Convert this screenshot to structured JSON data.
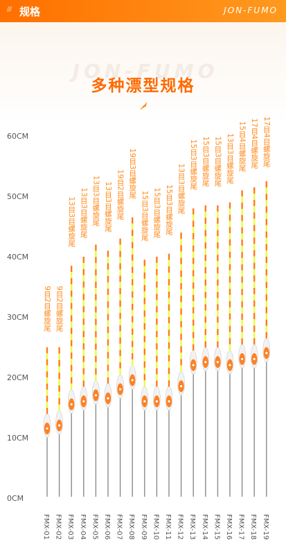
{
  "header": {
    "marks": "///",
    "title": "规格",
    "brand": "JON-FUMO",
    "colors": {
      "accent": "#ff6f00",
      "accent2": "#ff9a1f"
    }
  },
  "watermark": "JON-FUMO",
  "deco_icon": "feather-icon",
  "chart_data": {
    "type": "bar",
    "title": "多种漂型规格",
    "y_unit": "CM",
    "ylim": [
      0,
      60
    ],
    "yticks": [
      "0CM",
      "10CM",
      "20CM",
      "30CM",
      "40CM",
      "50CM",
      "60CM"
    ],
    "grid": false,
    "colors": {
      "tip_yellow": "#e8ff3a",
      "tip_orange": "#ff7a1a",
      "body": "#f2f2f2",
      "body_accent": "#ff6f00",
      "stem": "#8a8a8a",
      "label": "#ff8a1a"
    },
    "floats": [
      {
        "model": "FMX-01",
        "tail": "9目2目螺旋尾",
        "length": 25,
        "body_center": 12
      },
      {
        "model": "FMX-02",
        "tail": "9目2目螺旋尾",
        "length": 25,
        "body_center": 12.5
      },
      {
        "model": "FMX-03",
        "tail": "13目3目螺旋尾",
        "length": 38.5,
        "body_center": 16
      },
      {
        "model": "FMX-04",
        "tail": "13目3目螺旋尾",
        "length": 40,
        "body_center": 16.5
      },
      {
        "model": "FMX-05",
        "tail": "13目3目螺旋尾",
        "length": 42,
        "body_center": 17.5
      },
      {
        "model": "FMX-06",
        "tail": "13目3目螺旋尾",
        "length": 41,
        "body_center": 17
      },
      {
        "model": "FMX-07",
        "tail": "19目2目螺旋尾",
        "length": 43,
        "body_center": 18.5
      },
      {
        "model": "FMX-08",
        "tail": "19目3目螺旋尾",
        "length": 46.5,
        "body_center": 20
      },
      {
        "model": "FMX-09",
        "tail": "15目3目螺旋尾",
        "length": 39.5,
        "body_center": 16.5
      },
      {
        "model": "FMX-10",
        "tail": "15目3目螺旋尾",
        "length": 40,
        "body_center": 16.5
      },
      {
        "model": "FMX-11",
        "tail": "15目3目螺旋尾",
        "length": 40.5,
        "body_center": 16.5
      },
      {
        "model": "FMX-12",
        "tail": "13目3目螺旋尾",
        "length": 44,
        "body_center": 19
      },
      {
        "model": "FMX-13",
        "tail": "15目3目螺旋尾",
        "length": 48,
        "body_center": 22.5
      },
      {
        "model": "FMX-14",
        "tail": "15目3目螺旋尾",
        "length": 48.5,
        "body_center": 23
      },
      {
        "model": "FMX-15",
        "tail": "15目3目螺旋尾",
        "length": 48.5,
        "body_center": 23
      },
      {
        "model": "FMX-16",
        "tail": "13目3目螺旋尾",
        "length": 49,
        "body_center": 22.5
      },
      {
        "model": "FMX-17",
        "tail": "15目4目螺旋尾",
        "length": 51,
        "body_center": 23.5
      },
      {
        "model": "FMX-18",
        "tail": "17目4目螺旋尾",
        "length": 51.5,
        "body_center": 23.5
      },
      {
        "model": "FMX-19",
        "tail": "17目4目螺旋尾",
        "length": 52.5,
        "body_center": 24.5
      }
    ]
  }
}
